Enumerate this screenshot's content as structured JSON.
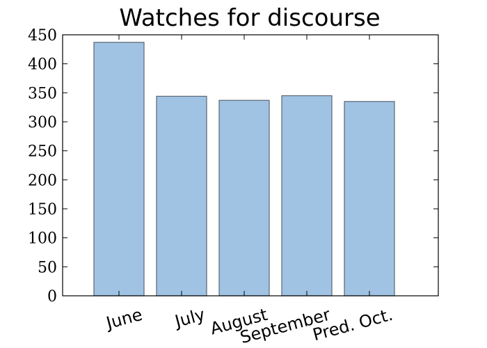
{
  "chart_data": {
    "type": "bar",
    "title": "Watches for discourse",
    "xlabel": "",
    "ylabel": "",
    "categories": [
      "June",
      "July",
      "August",
      "September",
      "Pred. Oct."
    ],
    "values": [
      437,
      344,
      337,
      345,
      335
    ],
    "ylim": [
      0,
      450
    ],
    "yticks": [
      0,
      50,
      100,
      150,
      200,
      250,
      300,
      350,
      400,
      450
    ],
    "bar_color": "#a0c3e4",
    "bar_edge_color": "#5a6470",
    "grid": false,
    "legend": "none"
  }
}
